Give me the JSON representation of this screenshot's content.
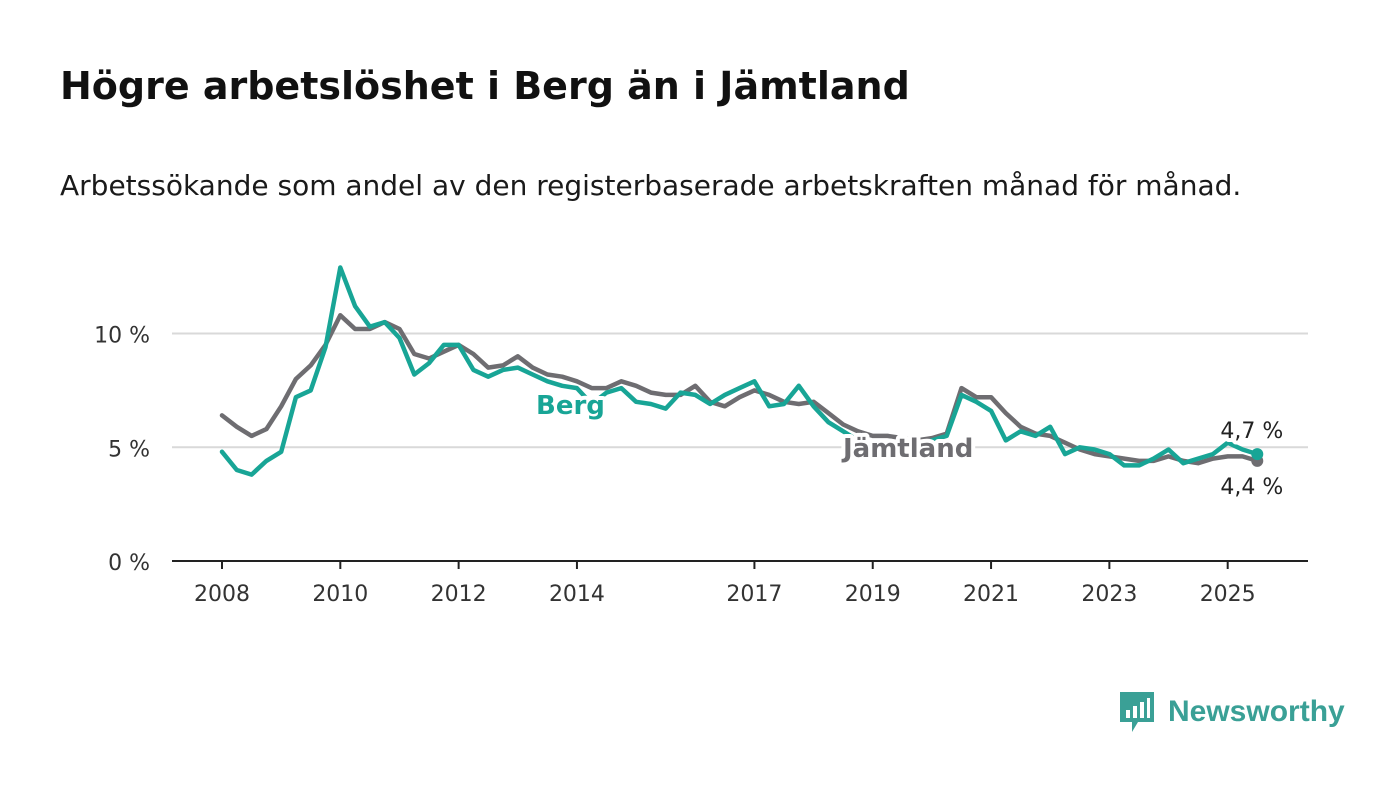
{
  "title": "Högre arbetslöshet i Berg än i Jämtland",
  "subtitle": "Arbetssökande som andel av den registerbaserade arbetskraften månad för månad.",
  "brand": {
    "name": "Newsworthy",
    "icon": "bar-chart-speech-bubble-icon",
    "color": "#3aa096"
  },
  "chart_data": {
    "type": "line",
    "ylim": [
      0,
      12
    ],
    "yticks": [
      0,
      5,
      10
    ],
    "ytick_labels": [
      "0 %",
      "5 %",
      "10 %"
    ],
    "xlim": [
      2008,
      2025.58
    ],
    "xtick_values": [
      2008,
      2010,
      2012,
      2014,
      2017,
      2019,
      2021,
      2023,
      2025
    ],
    "xtick_labels": [
      "2008",
      "2010",
      "2012",
      "2014",
      "2017",
      "2019",
      "2021",
      "2023",
      "2025"
    ],
    "grid": true,
    "series": [
      {
        "name": "Jämtland",
        "color": "#6e6d71",
        "label": "Jämtland",
        "end_label": "4,4 %",
        "x": [
          2008,
          2008.25,
          2008.5,
          2008.75,
          2009,
          2009.25,
          2009.5,
          2009.75,
          2010,
          2010.25,
          2010.5,
          2010.75,
          2011,
          2011.25,
          2011.5,
          2011.75,
          2012,
          2012.25,
          2012.5,
          2012.75,
          2013,
          2013.25,
          2013.5,
          2013.75,
          2014,
          2014.25,
          2014.5,
          2014.75,
          2015,
          2015.25,
          2015.5,
          2015.75,
          2016,
          2016.25,
          2016.5,
          2016.75,
          2017,
          2017.25,
          2017.5,
          2017.75,
          2018,
          2018.25,
          2018.5,
          2018.75,
          2019,
          2019.25,
          2019.5,
          2019.75,
          2020,
          2020.25,
          2020.5,
          2020.75,
          2021,
          2021.25,
          2021.5,
          2021.75,
          2022,
          2022.25,
          2022.5,
          2022.75,
          2023,
          2023.25,
          2023.5,
          2023.75,
          2024,
          2024.25,
          2024.5,
          2024.75,
          2025,
          2025.25,
          2025.5
        ],
        "values": [
          6.4,
          5.9,
          5.5,
          5.8,
          6.8,
          8.0,
          8.6,
          9.5,
          10.8,
          10.2,
          10.2,
          10.5,
          10.2,
          9.1,
          8.9,
          9.2,
          9.5,
          9.1,
          8.5,
          8.6,
          9.0,
          8.5,
          8.2,
          8.1,
          7.9,
          7.6,
          7.6,
          7.9,
          7.7,
          7.4,
          7.3,
          7.3,
          7.7,
          7.0,
          6.8,
          7.2,
          7.5,
          7.3,
          7.0,
          6.9,
          7.0,
          6.5,
          6.0,
          5.7,
          5.5,
          5.5,
          5.4,
          5.3,
          5.4,
          5.6,
          7.6,
          7.2,
          7.2,
          6.5,
          5.9,
          5.6,
          5.5,
          5.2,
          4.9,
          4.7,
          4.6,
          4.5,
          4.4,
          4.4,
          4.6,
          4.4,
          4.3,
          4.5,
          4.6,
          4.6,
          4.4
        ]
      },
      {
        "name": "Berg",
        "color": "#18a596",
        "label": "Berg",
        "end_label": "4,7 %",
        "x": [
          2008,
          2008.25,
          2008.5,
          2008.75,
          2009,
          2009.25,
          2009.5,
          2009.75,
          2010,
          2010.25,
          2010.5,
          2010.75,
          2011,
          2011.25,
          2011.5,
          2011.75,
          2012,
          2012.25,
          2012.5,
          2012.75,
          2013,
          2013.25,
          2013.5,
          2013.75,
          2014,
          2014.25,
          2014.5,
          2014.75,
          2015,
          2015.25,
          2015.5,
          2015.75,
          2016,
          2016.25,
          2016.5,
          2016.75,
          2017,
          2017.25,
          2017.5,
          2017.75,
          2018,
          2018.25,
          2018.5,
          2018.75,
          2019,
          2019.25,
          2019.5,
          2019.75,
          2020,
          2020.25,
          2020.5,
          2020.75,
          2021,
          2021.25,
          2021.5,
          2021.75,
          2022,
          2022.25,
          2022.5,
          2022.75,
          2023,
          2023.25,
          2023.5,
          2023.75,
          2024,
          2024.25,
          2024.5,
          2024.75,
          2025,
          2025.25,
          2025.5
        ],
        "values": [
          4.8,
          4.0,
          3.8,
          4.4,
          4.8,
          7.2,
          7.5,
          9.4,
          12.9,
          11.2,
          10.3,
          10.5,
          9.8,
          8.2,
          8.7,
          9.5,
          9.5,
          8.4,
          8.1,
          8.4,
          8.5,
          8.2,
          7.9,
          7.7,
          7.6,
          6.9,
          7.4,
          7.6,
          7.0,
          6.9,
          6.7,
          7.4,
          7.3,
          6.9,
          7.3,
          7.6,
          7.9,
          6.8,
          6.9,
          7.7,
          6.8,
          6.1,
          5.7,
          5.3,
          5.1,
          5.2,
          4.9,
          5.0,
          5.3,
          5.5,
          7.3,
          7.0,
          6.6,
          5.3,
          5.7,
          5.5,
          5.9,
          4.7,
          5.0,
          4.9,
          4.7,
          4.2,
          4.2,
          4.5,
          4.9,
          4.3,
          4.5,
          4.7,
          5.2,
          4.9,
          4.7
        ]
      }
    ]
  }
}
